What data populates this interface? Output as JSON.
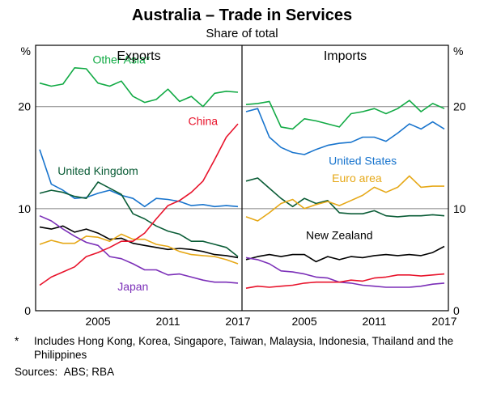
{
  "title": "Australia – Trade in Services",
  "subtitle": "Share of total",
  "title_fontsize": 20,
  "subtitle_fontsize": 15,
  "panel_label_fontsize": 16,
  "axis_fontsize": 14,
  "y_unit": "%",
  "ylim": [
    0,
    26
  ],
  "yticks": [
    0,
    10,
    20
  ],
  "grid_color": "#808080",
  "axis_color": "#000000",
  "background_color": "#ffffff",
  "line_width": 1.6,
  "x_years": [
    2000,
    2001,
    2002,
    2003,
    2004,
    2005,
    2006,
    2007,
    2008,
    2009,
    2010,
    2011,
    2012,
    2013,
    2014,
    2015,
    2016,
    2017
  ],
  "x_tick_years": [
    2005,
    2011,
    2017
  ],
  "panels": [
    {
      "label": "Exports",
      "series": [
        {
          "name": "Other Asia*",
          "color": "#11aa44",
          "values": [
            22.3,
            22.0,
            22.2,
            23.8,
            23.7,
            22.3,
            22.0,
            22.5,
            21.0,
            20.4,
            20.7,
            21.7,
            20.5,
            21.0,
            20.0,
            21.3,
            21.5,
            21.4
          ],
          "label_text": "Other Asia*",
          "label_x": 2007,
          "label_y": 24.2
        },
        {
          "name": "United States",
          "color": "#1874cd",
          "values": [
            15.8,
            12.4,
            11.8,
            11.0,
            11.1,
            11.5,
            11.8,
            11.3,
            11.0,
            10.2,
            11.0,
            10.9,
            10.7,
            10.3,
            10.4,
            10.2,
            10.3,
            10.2
          ]
        },
        {
          "name": "United Kingdom",
          "color": "#0a5c36",
          "values": [
            11.5,
            11.8,
            11.6,
            11.2,
            11.0,
            12.6,
            12.0,
            11.4,
            9.5,
            9.0,
            8.3,
            7.8,
            7.5,
            6.8,
            6.8,
            6.5,
            6.2,
            5.3
          ],
          "label_text": "United Kingdom",
          "label_x": 2005,
          "label_y": 13.3
        },
        {
          "name": "New Zealand",
          "color": "#000000",
          "values": [
            8.2,
            8.0,
            8.3,
            7.7,
            8.0,
            7.6,
            7.0,
            7.1,
            6.6,
            6.4,
            6.2,
            6.0,
            6.1,
            6.0,
            5.8,
            5.5,
            5.4,
            5.2
          ]
        },
        {
          "name": "Euro area",
          "color": "#e6a817",
          "values": [
            6.5,
            6.9,
            6.6,
            6.6,
            7.3,
            7.2,
            6.8,
            7.5,
            7.0,
            7.0,
            6.5,
            6.3,
            5.8,
            5.5,
            5.4,
            5.3,
            5.0,
            4.6
          ]
        },
        {
          "name": "Japan",
          "color": "#7b2fb8",
          "values": [
            9.3,
            8.8,
            8.0,
            7.3,
            6.7,
            6.4,
            5.3,
            5.1,
            4.6,
            4.0,
            4.0,
            3.5,
            3.6,
            3.3,
            3.0,
            2.8,
            2.8,
            2.7
          ],
          "label_text": "Japan",
          "label_x": 2008,
          "label_y": 2.0
        },
        {
          "name": "China",
          "color": "#e8132b",
          "values": [
            2.5,
            3.3,
            3.8,
            4.3,
            5.3,
            5.7,
            6.2,
            6.8,
            6.8,
            7.6,
            9.0,
            10.3,
            10.8,
            11.6,
            12.7,
            14.8,
            17.0,
            18.3
          ],
          "label_text": "China",
          "label_x": 2014,
          "label_y": 18.2
        }
      ]
    },
    {
      "label": "Imports",
      "series": [
        {
          "name": "Other Asia*",
          "color": "#11aa44",
          "values": [
            20.2,
            20.3,
            20.5,
            18.0,
            17.8,
            18.8,
            18.6,
            18.3,
            18.0,
            19.3,
            19.5,
            19.8,
            19.3,
            19.8,
            20.6,
            19.5,
            20.3,
            19.8
          ]
        },
        {
          "name": "United States",
          "color": "#1874cd",
          "values": [
            19.5,
            19.8,
            17.0,
            16.0,
            15.5,
            15.3,
            15.8,
            16.2,
            16.4,
            16.5,
            17.0,
            17.0,
            16.6,
            17.4,
            18.3,
            17.8,
            18.5,
            17.8
          ],
          "label_text": "United States",
          "label_x": 2010,
          "label_y": 14.3
        },
        {
          "name": "United Kingdom",
          "color": "#0a5c36",
          "values": [
            12.7,
            13.0,
            12.0,
            11.0,
            10.2,
            11.0,
            10.5,
            10.8,
            9.6,
            9.5,
            9.5,
            9.8,
            9.3,
            9.2,
            9.3,
            9.3,
            9.4,
            9.3
          ]
        },
        {
          "name": "Euro area",
          "color": "#e6a817",
          "values": [
            9.2,
            8.8,
            9.6,
            10.5,
            10.9,
            10.0,
            10.4,
            10.7,
            10.3,
            10.8,
            11.3,
            12.1,
            11.6,
            12.1,
            13.2,
            12.1,
            12.2,
            12.2
          ],
          "label_text": "Euro area",
          "label_x": 2009.5,
          "label_y": 12.6
        },
        {
          "name": "New Zealand",
          "color": "#000000",
          "values": [
            5.0,
            5.3,
            5.5,
            5.3,
            5.5,
            5.5,
            4.8,
            5.3,
            5.0,
            5.3,
            5.2,
            5.4,
            5.5,
            5.4,
            5.5,
            5.4,
            5.7,
            6.3
          ],
          "label_text": "New Zealand",
          "label_x": 2008,
          "label_y": 7.0
        },
        {
          "name": "Japan",
          "color": "#7b2fb8",
          "values": [
            5.2,
            5.0,
            4.6,
            3.9,
            3.8,
            3.6,
            3.3,
            3.2,
            2.8,
            2.7,
            2.5,
            2.4,
            2.3,
            2.3,
            2.3,
            2.4,
            2.6,
            2.7
          ]
        },
        {
          "name": "China",
          "color": "#e8132b",
          "values": [
            2.2,
            2.4,
            2.3,
            2.4,
            2.5,
            2.7,
            2.8,
            2.8,
            2.8,
            3.0,
            2.9,
            3.2,
            3.3,
            3.5,
            3.5,
            3.4,
            3.5,
            3.6
          ]
        }
      ]
    }
  ],
  "footnote_mark": "*",
  "footnote_text": "Includes Hong Kong, Korea, Singapore, Taiwan, Malaysia, Indonesia, Thailand and the Philippines",
  "sources_label": "Sources:",
  "sources_text": "ABS; RBA"
}
